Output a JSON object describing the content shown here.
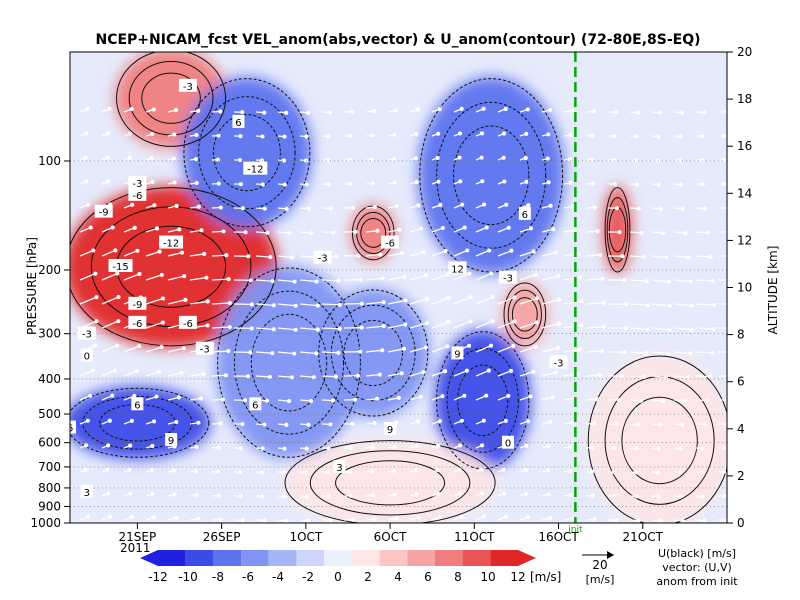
{
  "chart_data": {
    "type": "heatmap",
    "title": "NCEP+NICAM_fcst VEL_anom(abs,vector) & U_anom(contour)  (72-80E,8S-EQ)",
    "xlabel": "",
    "ylabel": "PRESSURE [hPa]",
    "y2label": "ALTITUDE [km]",
    "x_range": [
      "2011-09-17",
      "2011-10-26"
    ],
    "x_ticks": [
      {
        "date": "2011-09-21",
        "label": "21SEP"
      },
      {
        "date": "2011-09-26",
        "label": "26SEP"
      },
      {
        "date": "2011-10-01",
        "label": "1OCT"
      },
      {
        "date": "2011-10-06",
        "label": "6OCT"
      },
      {
        "date": "2011-10-11",
        "label": "11OCT"
      },
      {
        "date": "2011-10-16",
        "label": "16OCT"
      },
      {
        "date": "2011-10-21",
        "label": "21OCT"
      }
    ],
    "year_label": "2011",
    "y_scale": "log",
    "y_range": [
      1000,
      50
    ],
    "y_ticks": [
      100,
      200,
      300,
      400,
      500,
      600,
      700,
      800,
      900,
      1000
    ],
    "y2_ticks": [
      0,
      2,
      4,
      6,
      8,
      10,
      12,
      14,
      16,
      18,
      20
    ],
    "init_date": "2011-10-17",
    "init_label": "init",
    "colorbar": {
      "ticks": [
        -12,
        -10,
        -8,
        -6,
        -4,
        -2,
        0,
        2,
        4,
        6,
        8,
        10,
        12
      ],
      "unit": "[m/s]",
      "colors": [
        "#2121e0",
        "#3c4ce8",
        "#5c73ee",
        "#8095f3",
        "#a5b6f7",
        "#cbd6fa",
        "#eaeefd",
        "#fde6e6",
        "#fac6c6",
        "#f6a3a3",
        "#f07e7e",
        "#e95555",
        "#e02727"
      ]
    },
    "anomaly_regions": [
      {
        "date_start": "2011-09-17",
        "date_end": "2011-09-29",
        "p_top": 120,
        "p_bottom": 320,
        "value": 12
      },
      {
        "date_start": "2011-09-20",
        "date_end": "2011-09-26",
        "p_top": 50,
        "p_bottom": 90,
        "value": 8
      },
      {
        "date_start": "2011-10-04",
        "date_end": "2011-10-06",
        "p_top": 135,
        "p_bottom": 185,
        "value": 9
      },
      {
        "date_start": "2011-10-13",
        "date_end": "2011-10-15",
        "p_top": 220,
        "p_bottom": 320,
        "value": 7
      },
      {
        "date_start": "2011-10-19",
        "date_end": "2011-10-20",
        "p_top": 120,
        "p_bottom": 200,
        "value": 11
      },
      {
        "date_start": "2011-09-24",
        "date_end": "2011-10-01",
        "p_top": 60,
        "p_bottom": 150,
        "value": -8
      },
      {
        "date_start": "2011-10-08",
        "date_end": "2011-10-16",
        "p_top": 60,
        "p_bottom": 200,
        "value": -8
      },
      {
        "date_start": "2011-09-17",
        "date_end": "2011-09-25",
        "p_top": 430,
        "p_bottom": 650,
        "value": -10
      },
      {
        "date_start": "2011-09-26",
        "date_end": "2011-10-04",
        "p_top": 200,
        "p_bottom": 650,
        "value": -6
      },
      {
        "date_start": "2011-10-09",
        "date_end": "2011-10-14",
        "p_top": 300,
        "p_bottom": 700,
        "value": -10
      },
      {
        "date_start": "2011-10-02",
        "date_end": "2011-10-08",
        "p_top": 230,
        "p_bottom": 500,
        "value": -5
      },
      {
        "date_start": "2011-09-30",
        "date_end": "2011-10-12",
        "p_top": 600,
        "p_bottom": 1000,
        "value": 2
      },
      {
        "date_start": "2011-10-18",
        "date_end": "2011-10-26",
        "p_top": 350,
        "p_bottom": 1000,
        "value": 3
      }
    ],
    "contour_labels": [
      {
        "text": "-3",
        "date": "2011-09-24",
        "p": 62
      },
      {
        "text": "6",
        "date": "2011-09-27",
        "p": 78
      },
      {
        "text": "-12",
        "date": "2011-09-28",
        "p": 105
      },
      {
        "text": "-3",
        "date": "2011-09-21",
        "p": 115
      },
      {
        "text": "-6",
        "date": "2011-09-21",
        "p": 124
      },
      {
        "text": "-9",
        "date": "2011-09-19",
        "p": 138
      },
      {
        "text": "-15",
        "date": "2011-09-20",
        "p": 195
      },
      {
        "text": "-12",
        "date": "2011-09-23",
        "p": 168
      },
      {
        "text": "-9",
        "date": "2011-09-21",
        "p": 248
      },
      {
        "text": "-6",
        "date": "2011-09-21",
        "p": 280
      },
      {
        "text": "-6",
        "date": "2011-09-24",
        "p": 280
      },
      {
        "text": "-3",
        "date": "2011-09-18",
        "p": 300
      },
      {
        "text": "-3",
        "date": "2011-09-25",
        "p": 330
      },
      {
        "text": "0",
        "date": "2011-09-18",
        "p": 345
      },
      {
        "text": "-6",
        "date": "2011-10-06",
        "p": 168
      },
      {
        "text": "-3",
        "date": "2011-10-02",
        "p": 185
      },
      {
        "text": "12",
        "date": "2011-10-10",
        "p": 198
      },
      {
        "text": "-3",
        "date": "2011-10-13",
        "p": 210
      },
      {
        "text": "6",
        "date": "2011-10-14",
        "p": 140
      },
      {
        "text": "9",
        "date": "2011-10-10",
        "p": 340
      },
      {
        "text": "6",
        "date": "2011-09-21",
        "p": 470
      },
      {
        "text": "6",
        "date": "2011-09-17",
        "p": 545
      },
      {
        "text": "9",
        "date": "2011-09-23",
        "p": 590
      },
      {
        "text": "6",
        "date": "2011-09-28",
        "p": 470
      },
      {
        "text": "3",
        "date": "2011-10-03",
        "p": 700
      },
      {
        "text": "9",
        "date": "2011-10-06",
        "p": 550
      },
      {
        "text": "3",
        "date": "2011-09-18",
        "p": 820
      },
      {
        "text": "0",
        "date": "2011-10-13",
        "p": 600
      },
      {
        "text": "-3",
        "date": "2011-10-16",
        "p": 360
      }
    ],
    "legend_vector": {
      "value": 20,
      "unit": "[m/s]"
    },
    "legend_text": [
      "U(black) [m/s]",
      "vector: (U,V)",
      "anom from init"
    ]
  }
}
